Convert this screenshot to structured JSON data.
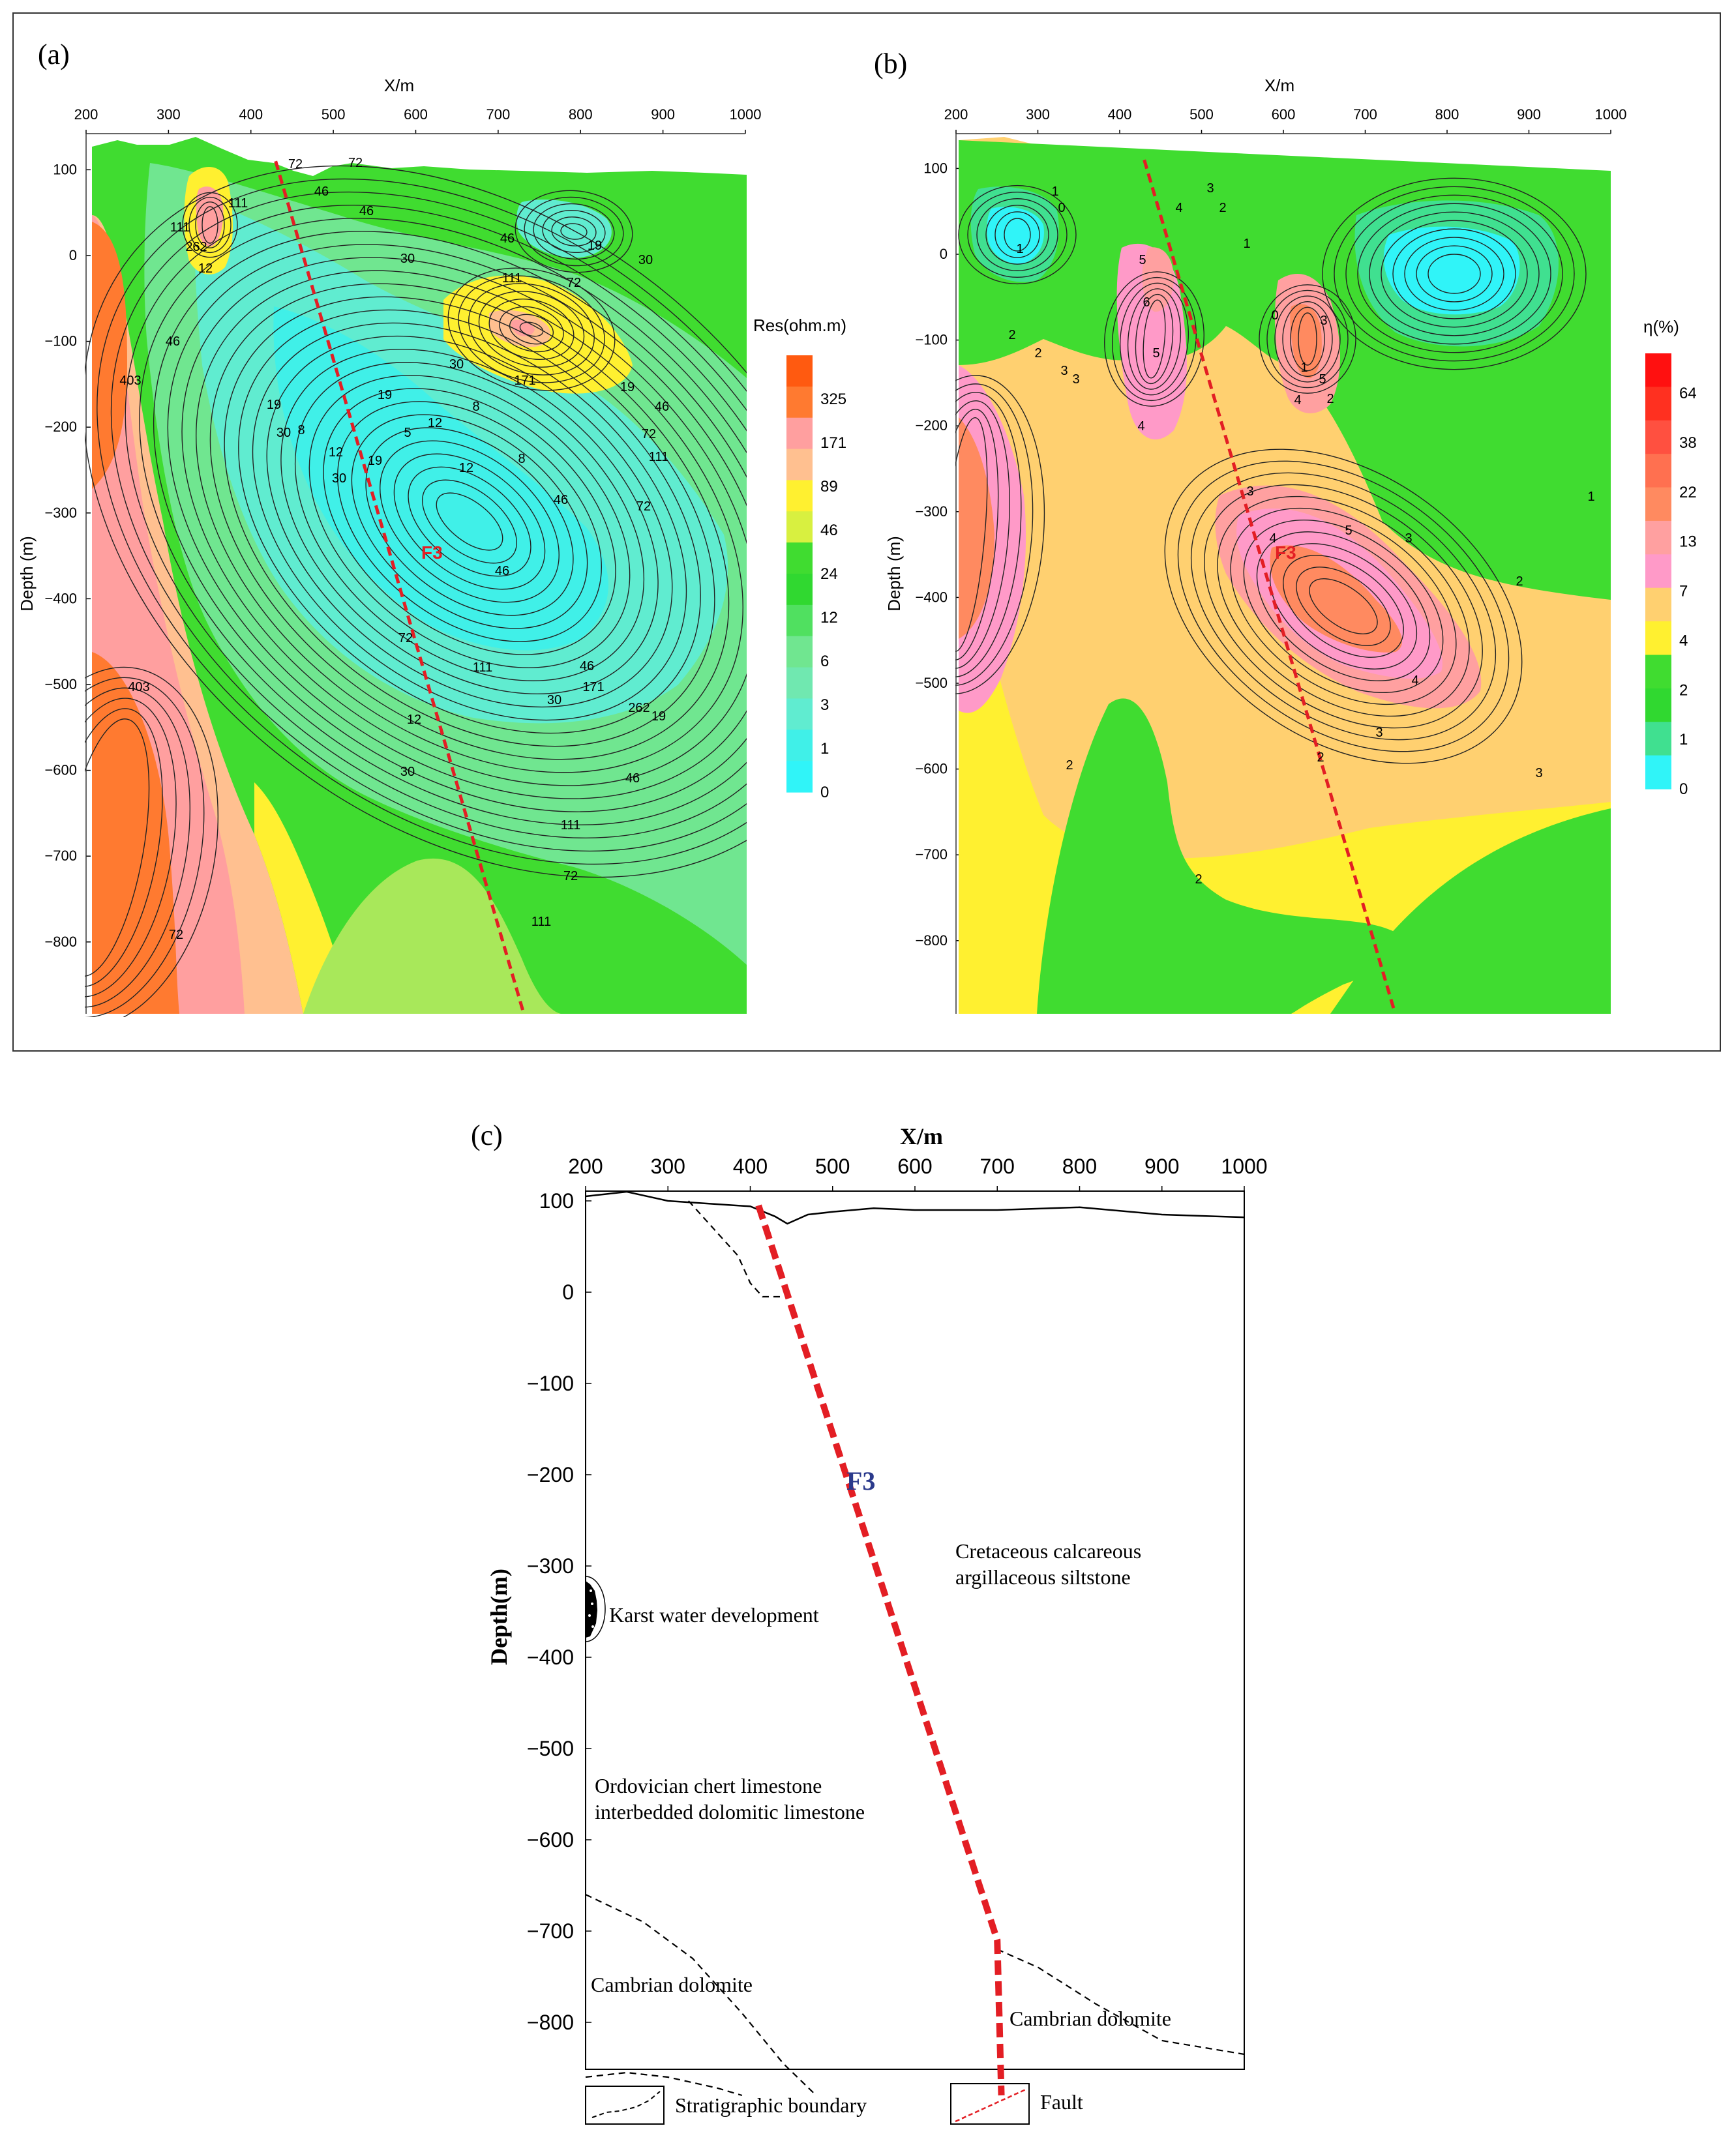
{
  "panels": {
    "a": {
      "letter": "(a)",
      "x_axis_title": "X/m",
      "y_axis_title": "Depth (m)",
      "colorbar_title": "Res(ohm.m)",
      "fault_label": "F3"
    },
    "b": {
      "letter": "(b)",
      "x_axis_title": "X/m",
      "y_axis_title": "Depth (m)",
      "colorbar_title": "η(%)",
      "fault_label": "F3"
    },
    "c": {
      "letter": "(c)",
      "x_axis_title": "X/m",
      "y_axis_title": "Depth(m)",
      "fault_label": "F3",
      "annotations": {
        "cretaceous_line1": "Cretaceous calcareous",
        "cretaceous_line2": "argillaceous siltstone",
        "karst": "Karst water development",
        "ordovician_line1": "Ordovician chert limestone",
        "ordovician_line2": "interbedded dolomitic limestone",
        "cambrian_left": "Cambrian dolomite",
        "cambrian_right": "Cambrian dolomite"
      },
      "legend": {
        "stratigraphic": "Stratigraphic boundary",
        "fault": "Fault"
      }
    }
  },
  "chart_data": [
    {
      "id": "a",
      "type": "heatmap",
      "xlabel": "X/m",
      "ylabel": "Depth (m)",
      "xlim": [
        200,
        1000
      ],
      "ylim": [
        -880,
        130
      ],
      "x_ticks": [
        200,
        300,
        400,
        500,
        600,
        700,
        800,
        900,
        1000
      ],
      "y_ticks": [
        100,
        0,
        -100,
        -200,
        -300,
        -400,
        -500,
        -600,
        -700,
        -800
      ],
      "colorbar": {
        "title": "Res(ohm.m)",
        "labels": [
          "325",
          "171",
          "89",
          "46",
          "24",
          "12",
          "6",
          "3",
          "1",
          "0"
        ],
        "colors": [
          "#ff5a10",
          "#ff7a30",
          "#ff9f9f",
          "#ffc090",
          "#fff030",
          "#d8f040",
          "#40dc30",
          "#30d830",
          "#50e060",
          "#70e690",
          "#70e8b0",
          "#60ecd0",
          "#40f0e8",
          "#30f4f8"
        ]
      },
      "contour_labels": [
        "111",
        "262",
        "111",
        "72",
        "46",
        "72",
        "46",
        "19",
        "30",
        "46",
        "111",
        "72",
        "171",
        "30",
        "19",
        "46",
        "72",
        "111",
        "72",
        "46",
        "30",
        "19",
        "12",
        "8",
        "8",
        "12",
        "5",
        "19",
        "30",
        "46",
        "12",
        "8",
        "12",
        "19",
        "30",
        "46",
        "72",
        "111",
        "171",
        "262",
        "403",
        "403",
        "72",
        "46",
        "30",
        "19",
        "12",
        "30",
        "46",
        "111",
        "72",
        "111"
      ],
      "fault": {
        "name": "F3",
        "points": [
          [
            430,
            110
          ],
          [
            730,
            -880
          ]
        ]
      }
    },
    {
      "id": "b",
      "type": "heatmap",
      "xlabel": "X/m",
      "ylabel": "Depth (m)",
      "xlim": [
        200,
        1000
      ],
      "ylim": [
        -880,
        130
      ],
      "x_ticks": [
        200,
        300,
        400,
        500,
        600,
        700,
        800,
        900,
        1000
      ],
      "y_ticks": [
        100,
        0,
        -100,
        -200,
        -300,
        -400,
        -500,
        -600,
        -700,
        -800
      ],
      "colorbar": {
        "title": "η(%)",
        "labels": [
          "64",
          "38",
          "22",
          "13",
          "7",
          "4",
          "2",
          "1",
          "0"
        ],
        "colors": [
          "#ff1010",
          "#ff3020",
          "#ff5040",
          "#ff7050",
          "#ff8a60",
          "#ffa0a0",
          "#ff9ac8",
          "#ffd070",
          "#fff030",
          "#40dc30",
          "#30d830",
          "#40e090",
          "#30f4f8"
        ]
      },
      "contour_labels": [
        "1",
        "0",
        "1",
        "2",
        "3",
        "2",
        "3",
        "4",
        "5",
        "6",
        "5",
        "4",
        "3",
        "2",
        "1",
        "0",
        "1",
        "2",
        "3",
        "4",
        "5",
        "3",
        "4",
        "5",
        "3",
        "4",
        "3",
        "2",
        "2",
        "2",
        "1",
        "2",
        "3"
      ],
      "fault": {
        "name": "F3",
        "points": [
          [
            430,
            110
          ],
          [
            735,
            -880
          ]
        ]
      }
    },
    {
      "id": "c",
      "type": "diagram",
      "xlabel": "X/m",
      "ylabel": "Depth(m)",
      "xlim": [
        200,
        1000
      ],
      "ylim": [
        -880,
        110
      ],
      "x_ticks": [
        200,
        300,
        400,
        500,
        600,
        700,
        800,
        900,
        1000
      ],
      "y_ticks": [
        100,
        0,
        -100,
        -200,
        -300,
        -400,
        -500,
        -600,
        -700,
        -800
      ],
      "surface": [
        [
          200,
          105
        ],
        [
          250,
          110
        ],
        [
          300,
          100
        ],
        [
          350,
          97
        ],
        [
          400,
          94
        ],
        [
          430,
          83
        ],
        [
          445,
          75
        ],
        [
          470,
          85
        ],
        [
          500,
          88
        ],
        [
          550,
          92
        ],
        [
          600,
          90
        ],
        [
          700,
          90
        ],
        [
          800,
          93
        ],
        [
          900,
          85
        ],
        [
          1000,
          82
        ]
      ],
      "fault": {
        "name": "F3",
        "points": [
          [
            410,
            95
          ],
          [
            700,
            -710
          ],
          [
            705,
            -880
          ]
        ]
      },
      "boundaries": [
        [
          [
            325,
            100
          ],
          [
            365,
            60
          ],
          [
            385,
            40
          ],
          [
            400,
            10
          ],
          [
            415,
            -5
          ],
          [
            440,
            -5
          ]
        ],
        [
          [
            200,
            -660
          ],
          [
            270,
            -690
          ],
          [
            330,
            -730
          ],
          [
            390,
            -790
          ],
          [
            440,
            -845
          ],
          [
            480,
            -880
          ]
        ],
        [
          [
            200,
            -860
          ],
          [
            250,
            -855
          ],
          [
            300,
            -860
          ],
          [
            360,
            -872
          ],
          [
            390,
            -880
          ]
        ],
        [
          [
            700,
            -720
          ],
          [
            750,
            -740
          ],
          [
            820,
            -780
          ],
          [
            900,
            -820
          ],
          [
            1000,
            -835
          ]
        ]
      ]
    }
  ]
}
